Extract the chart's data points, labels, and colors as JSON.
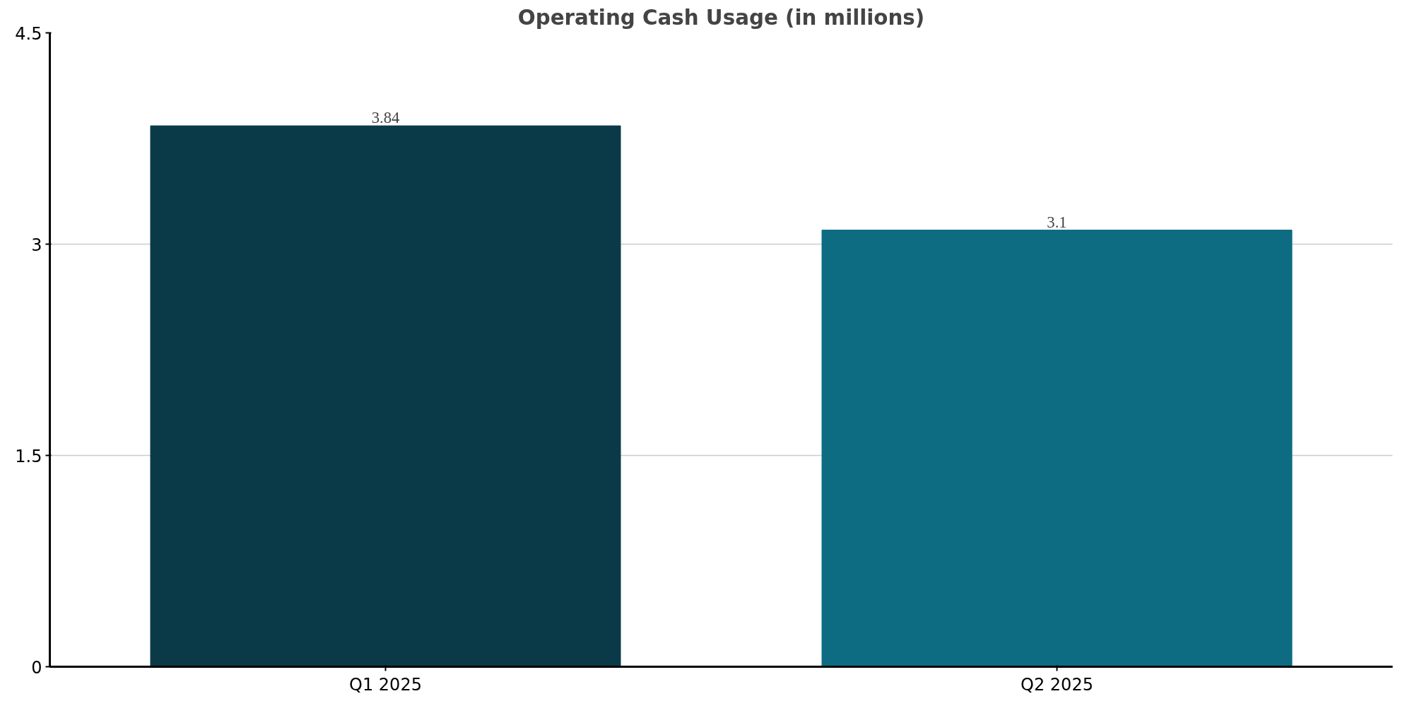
{
  "chart_data": {
    "type": "bar",
    "title": "Operating Cash Usage (in millions)",
    "categories": [
      "Q1 2025",
      "Q2 2025"
    ],
    "values": [
      3.84,
      3.1
    ],
    "colors": [
      "#0a3a47",
      "#0e6c82"
    ],
    "ylim": [
      0,
      4.5
    ],
    "yticks": [
      0,
      1.5,
      3,
      4.5
    ],
    "grid": "y",
    "data_labels": true
  }
}
